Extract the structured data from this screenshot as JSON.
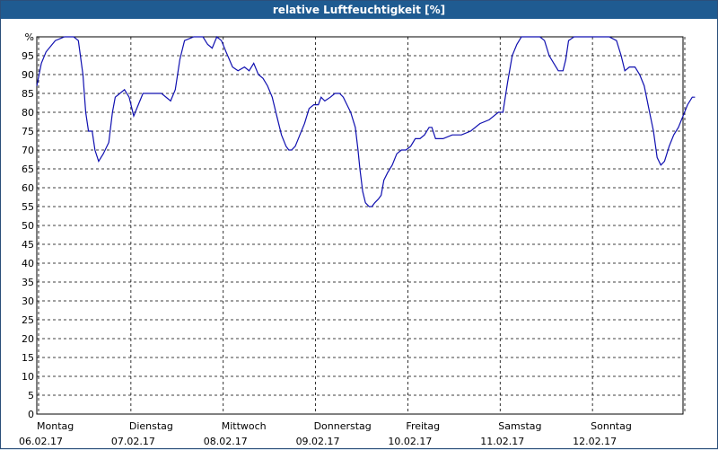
{
  "chart_data": {
    "type": "line",
    "title": "relative Luftfeuchtigkeit [%]",
    "ylim": [
      0,
      100
    ],
    "y_unit_label": "%",
    "grid": true,
    "colors": {
      "line": "#1010b0",
      "grid": "#000000",
      "title_bg": "#1f5b91"
    },
    "yticks": [
      0,
      5,
      10,
      15,
      20,
      25,
      30,
      35,
      40,
      45,
      50,
      55,
      60,
      65,
      70,
      75,
      80,
      85,
      90,
      95
    ],
    "days": [
      {
        "name": "Montag",
        "date": "06.02.17"
      },
      {
        "name": "Dienstag",
        "date": "07.02.17"
      },
      {
        "name": "Mittwoch",
        "date": "08.02.17"
      },
      {
        "name": "Donnerstag",
        "date": "09.02.17"
      },
      {
        "name": "Freitag",
        "date": "10.02.17"
      },
      {
        "name": "Samstag",
        "date": "11.02.17"
      },
      {
        "name": "Sonntag",
        "date": "12.02.17"
      }
    ],
    "series": [
      {
        "points": [
          [
            0.0,
            87
          ],
          [
            0.05,
            93
          ],
          [
            0.1,
            96
          ],
          [
            0.2,
            99
          ],
          [
            0.3,
            100
          ],
          [
            0.4,
            100
          ],
          [
            0.45,
            99
          ],
          [
            0.5,
            90
          ],
          [
            0.53,
            80
          ],
          [
            0.56,
            75
          ],
          [
            0.6,
            75
          ],
          [
            0.63,
            70
          ],
          [
            0.67,
            67
          ],
          [
            0.72,
            69
          ],
          [
            0.78,
            72
          ],
          [
            0.82,
            80
          ],
          [
            0.85,
            84
          ],
          [
            0.9,
            85
          ],
          [
            0.95,
            86
          ],
          [
            1.0,
            84
          ],
          [
            1.05,
            79
          ],
          [
            1.1,
            82
          ],
          [
            1.15,
            85
          ],
          [
            1.25,
            85
          ],
          [
            1.35,
            85
          ],
          [
            1.45,
            83
          ],
          [
            1.5,
            86
          ],
          [
            1.55,
            94
          ],
          [
            1.6,
            99
          ],
          [
            1.7,
            100
          ],
          [
            1.8,
            100
          ],
          [
            1.85,
            98
          ],
          [
            1.9,
            97
          ],
          [
            1.95,
            100
          ],
          [
            2.0,
            99
          ],
          [
            2.05,
            96
          ],
          [
            2.12,
            92
          ],
          [
            2.18,
            91
          ],
          [
            2.25,
            92
          ],
          [
            2.3,
            91
          ],
          [
            2.35,
            93
          ],
          [
            2.4,
            90
          ],
          [
            2.45,
            89
          ],
          [
            2.5,
            87
          ],
          [
            2.55,
            84
          ],
          [
            2.6,
            79
          ],
          [
            2.65,
            74
          ],
          [
            2.7,
            71
          ],
          [
            2.73,
            70
          ],
          [
            2.76,
            70
          ],
          [
            2.8,
            71
          ],
          [
            2.85,
            74
          ],
          [
            2.9,
            77
          ],
          [
            2.95,
            81
          ],
          [
            3.0,
            82
          ],
          [
            3.05,
            82
          ],
          [
            3.08,
            84
          ],
          [
            3.12,
            83
          ],
          [
            3.18,
            84
          ],
          [
            3.23,
            85
          ],
          [
            3.28,
            85
          ],
          [
            3.32,
            84
          ],
          [
            3.36,
            82
          ],
          [
            3.4,
            80
          ],
          [
            3.45,
            76
          ],
          [
            3.48,
            70
          ],
          [
            3.5,
            65
          ],
          [
            3.53,
            59
          ],
          [
            3.56,
            56
          ],
          [
            3.6,
            55
          ],
          [
            3.63,
            55
          ],
          [
            3.66,
            56
          ],
          [
            3.7,
            57
          ],
          [
            3.73,
            58
          ],
          [
            3.76,
            62
          ],
          [
            3.8,
            64
          ],
          [
            3.85,
            66
          ],
          [
            3.9,
            69
          ],
          [
            3.95,
            70
          ],
          [
            4.0,
            70
          ],
          [
            4.05,
            71
          ],
          [
            4.1,
            73
          ],
          [
            4.15,
            73
          ],
          [
            4.2,
            74
          ],
          [
            4.25,
            76
          ],
          [
            4.28,
            76
          ],
          [
            4.32,
            73
          ],
          [
            4.4,
            73
          ],
          [
            4.5,
            74
          ],
          [
            4.6,
            74
          ],
          [
            4.7,
            75
          ],
          [
            4.8,
            77
          ],
          [
            4.9,
            78
          ],
          [
            5.0,
            80
          ],
          [
            5.05,
            80
          ],
          [
            5.1,
            88
          ],
          [
            5.15,
            95
          ],
          [
            5.2,
            98
          ],
          [
            5.25,
            100
          ],
          [
            5.35,
            100
          ],
          [
            5.45,
            100
          ],
          [
            5.5,
            99
          ],
          [
            5.55,
            95
          ],
          [
            5.6,
            93
          ],
          [
            5.65,
            91
          ],
          [
            5.7,
            91
          ],
          [
            5.73,
            94
          ],
          [
            5.76,
            99
          ],
          [
            5.82,
            100
          ],
          [
            5.95,
            100
          ],
          [
            6.1,
            100
          ],
          [
            6.2,
            100
          ],
          [
            6.28,
            99
          ],
          [
            6.33,
            95
          ],
          [
            6.37,
            91
          ],
          [
            6.42,
            92
          ],
          [
            6.48,
            92
          ],
          [
            6.53,
            90
          ],
          [
            6.58,
            87
          ],
          [
            6.63,
            81
          ],
          [
            6.68,
            75
          ],
          [
            6.72,
            68
          ],
          [
            6.76,
            66
          ],
          [
            6.8,
            67
          ],
          [
            6.85,
            71
          ],
          [
            6.9,
            74
          ],
          [
            6.95,
            76
          ],
          [
            7.0,
            79
          ],
          [
            7.05,
            82
          ],
          [
            7.1,
            84
          ],
          [
            7.13,
            84
          ]
        ]
      }
    ]
  }
}
